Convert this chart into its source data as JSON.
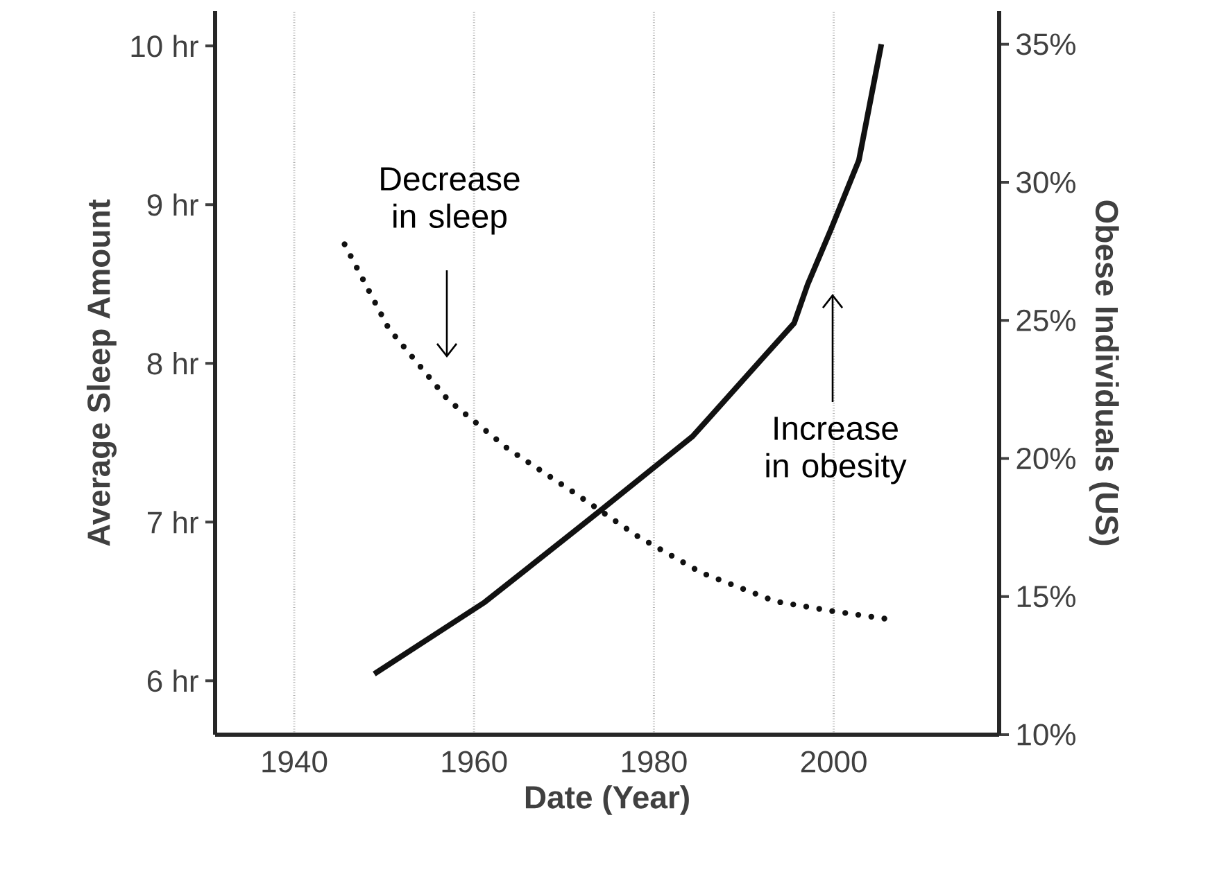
{
  "chart_data": {
    "type": "line",
    "xlabel": "Date (Year)",
    "ylabel": "Average Sleep Amount",
    "y2label": "Obese Individuals (US)",
    "xlim": [
      1931.2,
      2018.4
    ],
    "ylim": [
      5.66,
      10.22
    ],
    "y2lim": [
      10,
      36.2
    ],
    "xticks": [
      1940,
      1960,
      1980,
      2000
    ],
    "yticks": [
      {
        "value": 6,
        "label": "6 hr"
      },
      {
        "value": 7,
        "label": "7 hr"
      },
      {
        "value": 8,
        "label": "8 hr"
      },
      {
        "value": 9,
        "label": "9 hr"
      },
      {
        "value": 10,
        "label": "10 hr"
      }
    ],
    "y2ticks": [
      {
        "value": 10,
        "label": "10%"
      },
      {
        "value": 15,
        "label": "15%"
      },
      {
        "value": 20,
        "label": "20%"
      },
      {
        "value": 25,
        "label": "25%"
      },
      {
        "value": 30,
        "label": "30%"
      },
      {
        "value": 35,
        "label": "35%"
      }
    ],
    "grid": "x",
    "series": [
      {
        "color": "#111111",
        "line_style": "dotted",
        "x": [
          1945.6,
          1950.5,
          1957.1,
          1963.8,
          1971.0,
          1978.2,
          1985.3,
          1993.5,
          1999.7,
          2005.8
        ],
        "values": [
          8.75,
          8.22,
          7.77,
          7.46,
          7.19,
          6.91,
          6.68,
          6.5,
          6.44,
          6.39
        ]
      },
      {
        "color": "#111111",
        "line_style": "solid",
        "axis": "y2",
        "x": [
          1948.9,
          1961.2,
          1974.0,
          1984.3,
          1992.0,
          1995.6,
          1997.1,
          1999.7,
          2002.8,
          2005.3
        ],
        "values": [
          12.2,
          14.8,
          18.1,
          20.8,
          23.6,
          24.9,
          26.3,
          28.3,
          30.8,
          35.0
        ]
      }
    ],
    "annotations": [
      "Decrease in sleep",
      "Increase in obesity"
    ]
  }
}
